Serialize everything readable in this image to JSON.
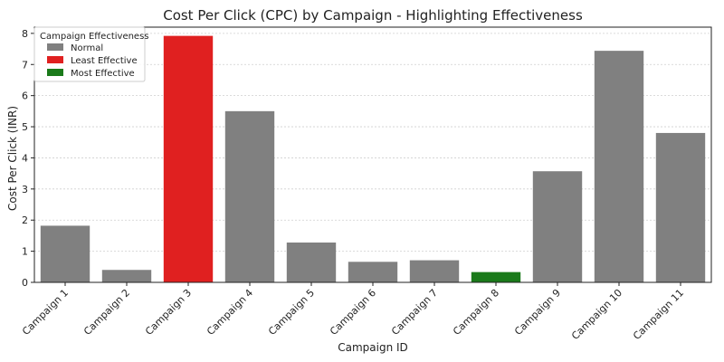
{
  "chart_data": {
    "type": "bar",
    "title": "Cost Per Click (CPC) by Campaign - Highlighting Effectiveness",
    "xlabel": "Campaign ID",
    "ylabel": "Cost Per Click (INR)",
    "ylim": [
      0,
      8.2
    ],
    "yticks": [
      "0",
      "1",
      "2",
      "3",
      "4",
      "5",
      "6",
      "7",
      "8"
    ],
    "grid": "horizontal dashed",
    "categories": [
      "Campaign 1",
      "Campaign 2",
      "Campaign 3",
      "Campaign 4",
      "Campaign 5",
      "Campaign 6",
      "Campaign 7",
      "Campaign 8",
      "Campaign 9",
      "Campaign 10",
      "Campaign 11"
    ],
    "values": [
      1.82,
      0.4,
      7.92,
      5.5,
      1.28,
      0.66,
      0.71,
      0.33,
      3.57,
      7.44,
      4.8
    ],
    "effectiveness": [
      "Normal",
      "Normal",
      "Least Effective",
      "Normal",
      "Normal",
      "Normal",
      "Normal",
      "Most Effective",
      "Normal",
      "Normal",
      "Normal"
    ],
    "legend": {
      "title": "Campaign Effectiveness",
      "placement": "top-left",
      "entries": [
        {
          "label": "Normal",
          "color": "#808080"
        },
        {
          "label": "Least Effective",
          "color": "#e02020"
        },
        {
          "label": "Most Effective",
          "color": "#1a7a1a"
        }
      ]
    },
    "colors": {
      "Normal": "#808080",
      "Least Effective": "#e02020",
      "Most Effective": "#1a7a1a"
    }
  }
}
